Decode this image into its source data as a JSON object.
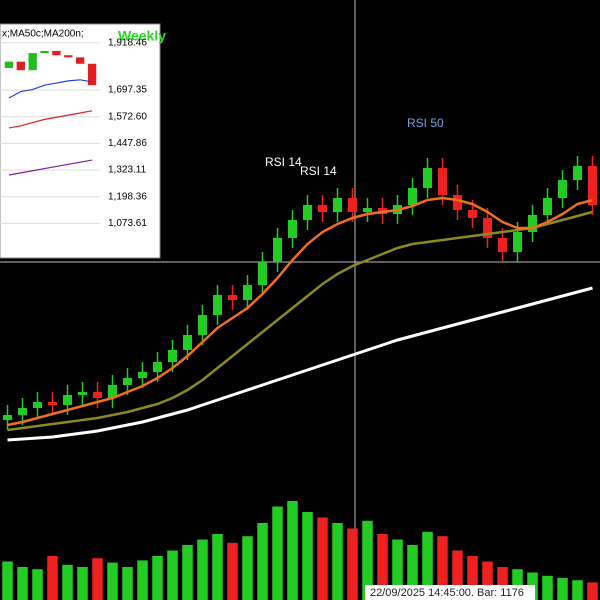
{
  "chart_data": {
    "type": "candlestick",
    "ylim": [
      0,
      480
    ],
    "open": [
      60,
      65,
      72,
      78,
      75,
      85,
      88,
      82,
      95,
      102,
      108,
      118,
      130,
      145,
      165,
      185,
      180,
      195,
      218,
      242,
      260,
      275,
      268,
      282,
      268,
      272,
      266,
      275,
      292,
      312,
      285,
      270,
      262,
      242,
      228,
      248,
      265,
      282,
      300,
      314
    ],
    "high": [
      75,
      82,
      88,
      88,
      95,
      98,
      98,
      105,
      112,
      118,
      128,
      140,
      155,
      175,
      195,
      195,
      205,
      228,
      252,
      270,
      285,
      285,
      292,
      292,
      282,
      282,
      285,
      302,
      322,
      322,
      295,
      280,
      272,
      252,
      258,
      275,
      292,
      310,
      324,
      324
    ],
    "low": [
      50,
      55,
      62,
      65,
      65,
      75,
      72,
      72,
      85,
      92,
      98,
      108,
      120,
      135,
      155,
      170,
      170,
      185,
      208,
      232,
      250,
      258,
      258,
      258,
      258,
      256,
      256,
      265,
      282,
      275,
      260,
      252,
      232,
      218,
      218,
      238,
      255,
      272,
      290,
      265
    ],
    "close": [
      65,
      72,
      78,
      75,
      85,
      88,
      82,
      95,
      102,
      108,
      118,
      130,
      145,
      165,
      185,
      180,
      195,
      218,
      242,
      260,
      275,
      268,
      282,
      268,
      272,
      266,
      275,
      292,
      312,
      285,
      270,
      262,
      242,
      228,
      248,
      265,
      282,
      300,
      314,
      275
    ],
    "up_color": "#22cc22",
    "down_color": "#ee2020",
    "series": [
      {
        "color": "#ffffff",
        "values": [
          40,
          41,
          42,
          43,
          45,
          47,
          49,
          52,
          55,
          58,
          62,
          66,
          70,
          75,
          80,
          85,
          90,
          95,
          100,
          105,
          110,
          115,
          120,
          125,
          130,
          135,
          140,
          144,
          148,
          152,
          156,
          160,
          164,
          168,
          172,
          176,
          180,
          184,
          188,
          192
        ]
      },
      {
        "color": "#8a8a20",
        "values": [
          50,
          52,
          54,
          56,
          58,
          60,
          62,
          65,
          68,
          72,
          76,
          82,
          90,
          100,
          112,
          124,
          136,
          148,
          160,
          172,
          184,
          196,
          206,
          214,
          220,
          226,
          232,
          236,
          238,
          240,
          242,
          244,
          246,
          248,
          250,
          252,
          256,
          260,
          264,
          268
        ]
      },
      {
        "color": "#f07020",
        "values": [
          55,
          58,
          62,
          66,
          70,
          74,
          78,
          82,
          88,
          94,
          102,
          112,
          124,
          138,
          152,
          162,
          172,
          186,
          202,
          220,
          236,
          248,
          256,
          262,
          266,
          268,
          270,
          274,
          280,
          282,
          280,
          276,
          268,
          258,
          252,
          252,
          258,
          266,
          276,
          280
        ]
      }
    ],
    "volume": [
      35,
      30,
      28,
      40,
      32,
      30,
      38,
      34,
      30,
      36,
      40,
      45,
      50,
      55,
      60,
      52,
      58,
      70,
      85,
      90,
      80,
      75,
      70,
      65,
      72,
      60,
      55,
      50,
      62,
      58,
      45,
      40,
      35,
      30,
      28,
      25,
      22,
      20,
      18,
      16
    ],
    "volume_ylim": [
      0,
      100
    ],
    "annotations": [
      "RSI 14",
      "RSI 14",
      "RSI 50"
    ],
    "status": "22/09/2025 14:45:00. Bar: 1176",
    "inset": {
      "legend": "x;MA50c;MA200n;",
      "title": "Weekly",
      "ylim": [
        912,
        2006
      ],
      "yticks": [
        {
          "value": 1918.46,
          "label": "1,918.46"
        },
        {
          "value": 1697.35,
          "label": "1,697.35"
        },
        {
          "value": 1572.6,
          "label": "1,572.60"
        },
        {
          "value": 1447.86,
          "label": "1,447.86"
        },
        {
          "value": 1323.11,
          "label": "1,323.11"
        },
        {
          "value": 1198.36,
          "label": "1,198.36"
        },
        {
          "value": 1073.61,
          "label": "1,073.61"
        }
      ],
      "open": [
        1800,
        1830,
        1790,
        1870,
        1880,
        1860,
        1850,
        1820
      ],
      "close": [
        1830,
        1790,
        1870,
        1880,
        1860,
        1850,
        1820,
        1720
      ],
      "series": [
        {
          "color": "#2040e0",
          "values": [
            1660,
            1690,
            1700,
            1720,
            1730,
            1740,
            1745,
            1735
          ]
        },
        {
          "color": "#e02020",
          "values": [
            1520,
            1530,
            1545,
            1560,
            1570,
            1580,
            1590,
            1600
          ]
        },
        {
          "color": "#8020a0",
          "values": [
            1300,
            1310,
            1320,
            1330,
            1340,
            1350,
            1360,
            1370
          ]
        }
      ]
    }
  }
}
